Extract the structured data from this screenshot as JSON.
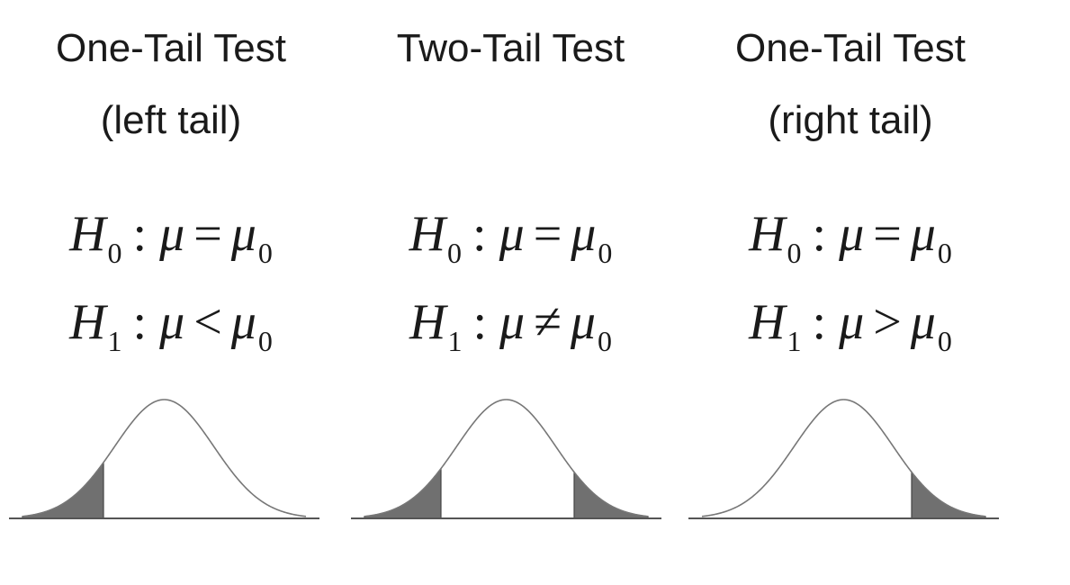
{
  "panels": [
    {
      "title_line1": "One-Tail Test",
      "title_line2": "(left tail)",
      "h0": {
        "symbol": "H",
        "subscript": "0",
        "param": "μ",
        "operator": "=",
        "value": "μ",
        "value_subscript": "0"
      },
      "h1": {
        "symbol": "H",
        "subscript": "1",
        "param": "μ",
        "operator": "<",
        "value": "μ",
        "value_subscript": "0"
      },
      "shaded_tails": [
        "left"
      ]
    },
    {
      "title_line1": "Two-Tail Test",
      "title_line2": "",
      "h0": {
        "symbol": "H",
        "subscript": "0",
        "param": "μ",
        "operator": "=",
        "value": "μ",
        "value_subscript": "0"
      },
      "h1": {
        "symbol": "H",
        "subscript": "1",
        "param": "μ",
        "operator": "≠",
        "value": "μ",
        "value_subscript": "0"
      },
      "shaded_tails": [
        "left",
        "right"
      ]
    },
    {
      "title_line1": "One-Tail Test",
      "title_line2": "(right tail)",
      "h0": {
        "symbol": "H",
        "subscript": "0",
        "param": "μ",
        "operator": "=",
        "value": "μ",
        "value_subscript": "0"
      },
      "h1": {
        "symbol": "H",
        "subscript": "1",
        "param": "μ",
        "operator": ">",
        "value": "μ",
        "value_subscript": "0"
      },
      "shaded_tails": [
        "right"
      ]
    }
  ],
  "colors": {
    "text": "#1a1a1a",
    "curve": "#777777",
    "tail_fill": "#707070",
    "baseline": "#555555"
  }
}
